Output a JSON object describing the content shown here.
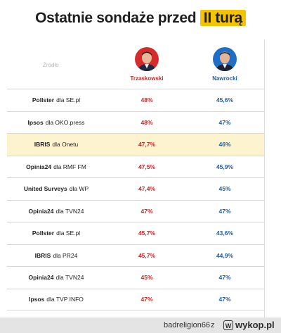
{
  "header": {
    "title_prefix": "Ostatnie sondaże przed",
    "title_highlight": "II turą",
    "highlight_color": "#f5c400"
  },
  "table": {
    "source_column_label": "Źródło",
    "candidates": [
      {
        "name": "Trzaskowski",
        "color": "#c62828"
      },
      {
        "name": "Nawrocki",
        "color": "#1d5fa8"
      }
    ],
    "rows": [
      {
        "pollster": "Pollster",
        "media": "dla SE.pl",
        "trzaskowski": "48%",
        "nawrocki": "45,6%",
        "highlighted": false
      },
      {
        "pollster": "Ipsos",
        "media": "dla OKO.press",
        "trzaskowski": "48%",
        "nawrocki": "47%",
        "highlighted": false
      },
      {
        "pollster": "IBRIS",
        "media": "dla Onetu",
        "trzaskowski": "47,7%",
        "nawrocki": "46%",
        "highlighted": true
      },
      {
        "pollster": "Opinia24",
        "media": "dla RMF FM",
        "trzaskowski": "47,5%",
        "nawrocki": "45,9%",
        "highlighted": false
      },
      {
        "pollster": "United Surveys",
        "media": "dla WP",
        "trzaskowski": "47,4%",
        "nawrocki": "45%",
        "highlighted": false
      },
      {
        "pollster": "Opinia24",
        "media": "dla TVN24",
        "trzaskowski": "47%",
        "nawrocki": "47%",
        "highlighted": false
      },
      {
        "pollster": "Pollster",
        "media": "dla SE.pl",
        "trzaskowski": "45,7%",
        "nawrocki": "43,6%",
        "highlighted": false
      },
      {
        "pollster": "IBRIS",
        "media": "dla PR24",
        "trzaskowski": "45,7%",
        "nawrocki": "44,9%",
        "highlighted": false
      },
      {
        "pollster": "Opinia24",
        "media": "dla TVN24",
        "trzaskowski": "45%",
        "nawrocki": "47%",
        "highlighted": false
      },
      {
        "pollster": "Ipsos",
        "media": "dla TVP INFO",
        "trzaskowski": "47%",
        "nawrocki": "47%",
        "highlighted": false
      }
    ]
  },
  "footer": {
    "username": "badreligion66",
    "separator": "z",
    "site": "wykop.pl"
  }
}
